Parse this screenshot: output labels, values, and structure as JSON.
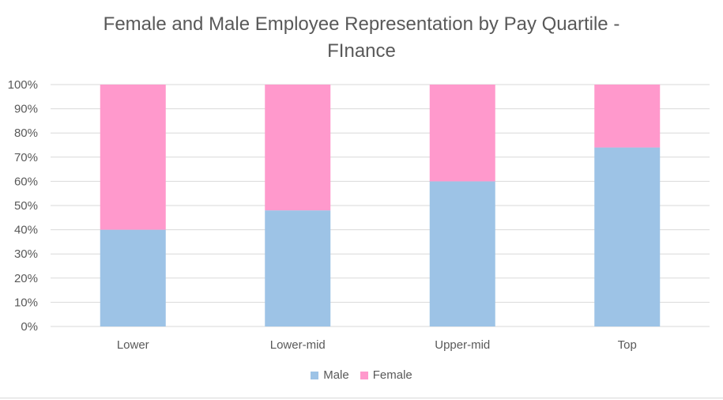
{
  "chart_data": {
    "type": "bar",
    "stacked": true,
    "title_lines": [
      "Female and Male Employee Representation by Pay Quartile -",
      "FInance"
    ],
    "categories": [
      "Lower",
      "Lower-mid",
      "Upper-mid",
      "Top"
    ],
    "series": [
      {
        "name": "Male",
        "color": "#9dc3e6",
        "values": [
          40,
          48,
          60,
          74
        ]
      },
      {
        "name": "Female",
        "color": "#ff99cc",
        "values": [
          60,
          52,
          40,
          26
        ]
      }
    ],
    "ylim": [
      0,
      100
    ],
    "yticks": [
      "0%",
      "10%",
      "20%",
      "30%",
      "40%",
      "50%",
      "60%",
      "70%",
      "80%",
      "90%",
      "100%"
    ],
    "grid": true,
    "legend_position": "bottom"
  }
}
